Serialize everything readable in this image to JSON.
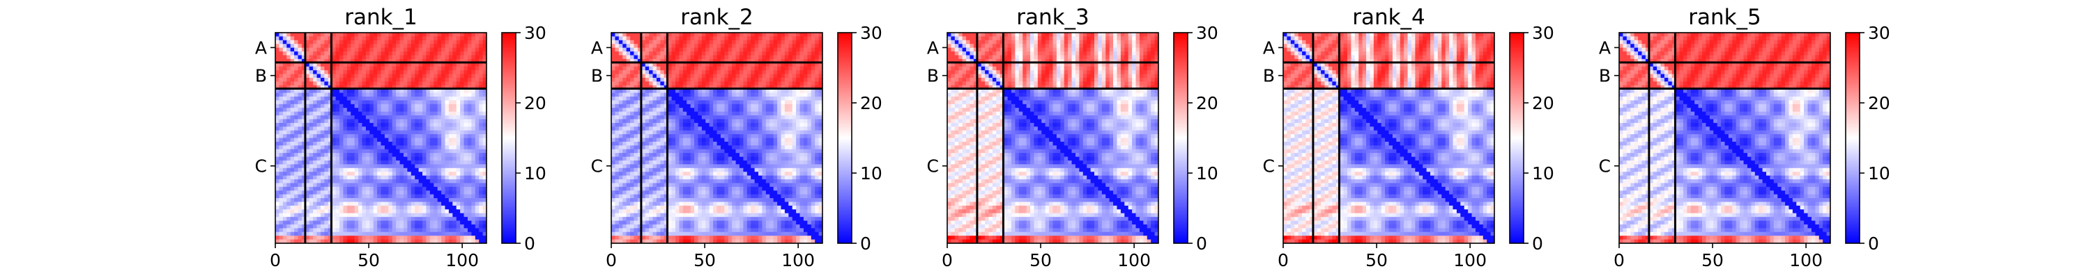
{
  "chart_data": [
    {
      "type": "heatmap",
      "title": "rank_1",
      "chains": [
        "A",
        "B",
        "C"
      ],
      "chain_boundaries": [
        0,
        16,
        30,
        113
      ],
      "xticks": [
        0,
        50,
        100
      ],
      "xlim": [
        0,
        113
      ],
      "colorbar": {
        "min": 0,
        "max": 30,
        "ticks": [
          0,
          10,
          20,
          30
        ],
        "colors": [
          "#0000ff",
          "#ffffff",
          "#ff0000"
        ]
      },
      "summary": {
        "intra_AB": 26,
        "AB_to_C": 26,
        "C_to_AB": 10,
        "C_to_C": 5
      },
      "contact_pattern": "interchain"
    },
    {
      "type": "heatmap",
      "title": "rank_2",
      "chains": [
        "A",
        "B",
        "C"
      ],
      "chain_boundaries": [
        0,
        16,
        30,
        113
      ],
      "xticks": [
        0,
        50,
        100
      ],
      "xlim": [
        0,
        113
      ],
      "colorbar": {
        "min": 0,
        "max": 30,
        "ticks": [
          0,
          10,
          20,
          30
        ],
        "colors": [
          "#0000ff",
          "#ffffff",
          "#ff0000"
        ]
      },
      "summary": {
        "intra_AB": 26,
        "AB_to_C": 26,
        "C_to_AB": 10,
        "C_to_C": 5
      },
      "contact_pattern": "interchain"
    },
    {
      "type": "heatmap",
      "title": "rank_3",
      "chains": [
        "A",
        "B",
        "C"
      ],
      "chain_boundaries": [
        0,
        16,
        30,
        113
      ],
      "xticks": [
        0,
        50,
        100
      ],
      "xlim": [
        0,
        113
      ],
      "colorbar": {
        "min": 0,
        "max": 30,
        "ticks": [
          0,
          10,
          20,
          30
        ],
        "colors": [
          "#0000ff",
          "#ffffff",
          "#ff0000"
        ]
      },
      "summary": {
        "intra_AB": 26,
        "AB_to_C": 26,
        "C_to_AB": 16,
        "C_to_C": 5
      },
      "contact_pattern": "interchain-with-spots"
    },
    {
      "type": "heatmap",
      "title": "rank_4",
      "chains": [
        "A",
        "B",
        "C"
      ],
      "chain_boundaries": [
        0,
        16,
        30,
        113
      ],
      "xticks": [
        0,
        50,
        100
      ],
      "xlim": [
        0,
        113
      ],
      "colorbar": {
        "min": 0,
        "max": 30,
        "ticks": [
          0,
          10,
          20,
          30
        ],
        "colors": [
          "#0000ff",
          "#ffffff",
          "#ff0000"
        ]
      },
      "summary": {
        "intra_AB": 26,
        "AB_to_C": 26,
        "C_to_AB": 15,
        "C_to_C": 5
      },
      "contact_pattern": "interchain-with-spots"
    },
    {
      "type": "heatmap",
      "title": "rank_5",
      "chains": [
        "A",
        "B",
        "C"
      ],
      "chain_boundaries": [
        0,
        16,
        30,
        113
      ],
      "xticks": [
        0,
        50,
        100
      ],
      "xlim": [
        0,
        113
      ],
      "colorbar": {
        "min": 0,
        "max": 30,
        "ticks": [
          0,
          10,
          20,
          30
        ],
        "colors": [
          "#0000ff",
          "#ffffff",
          "#ff0000"
        ]
      },
      "summary": {
        "intra_AB": 26,
        "AB_to_C": 26,
        "C_to_AB": 13,
        "C_to_C": 5
      },
      "contact_pattern": "interchain"
    }
  ]
}
